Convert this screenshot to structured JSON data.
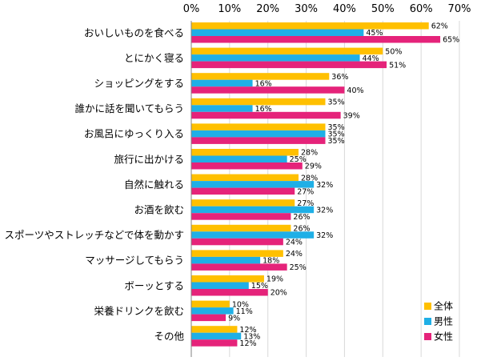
{
  "chart_data": {
    "type": "bar",
    "orientation": "horizontal",
    "title": "",
    "xlabel": "",
    "ylabel": "",
    "xlim": [
      0,
      70
    ],
    "xticks": [
      "0%",
      "10%",
      "20%",
      "30%",
      "40%",
      "50%",
      "60%",
      "70%"
    ],
    "grid": true,
    "legend_position": "bottom-right",
    "categories": [
      "おいしいものを食べる",
      "とにかく寝る",
      "ショッピングをする",
      "誰かに話を聞いてもらう",
      "お風呂にゆっくり入る",
      "旅行に出かける",
      "自然に触れる",
      "お酒を飲む",
      "スポーツやストレッチなどで体を動かす",
      "マッサージしてもらう",
      "ボーッとする",
      "栄養ドリンクを飲む",
      "その他"
    ],
    "series": [
      {
        "name": "全体",
        "color": "#FFC000",
        "values": [
          62,
          50,
          36,
          35,
          35,
          28,
          28,
          27,
          26,
          24,
          19,
          10,
          12
        ]
      },
      {
        "name": "男性",
        "color": "#1FAFE6",
        "values": [
          45,
          44,
          16,
          16,
          35,
          25,
          32,
          32,
          32,
          18,
          15,
          11,
          13
        ]
      },
      {
        "name": "女性",
        "color": "#E5237A",
        "values": [
          65,
          51,
          40,
          39,
          35,
          29,
          27,
          26,
          24,
          25,
          20,
          9,
          12
        ]
      }
    ]
  }
}
